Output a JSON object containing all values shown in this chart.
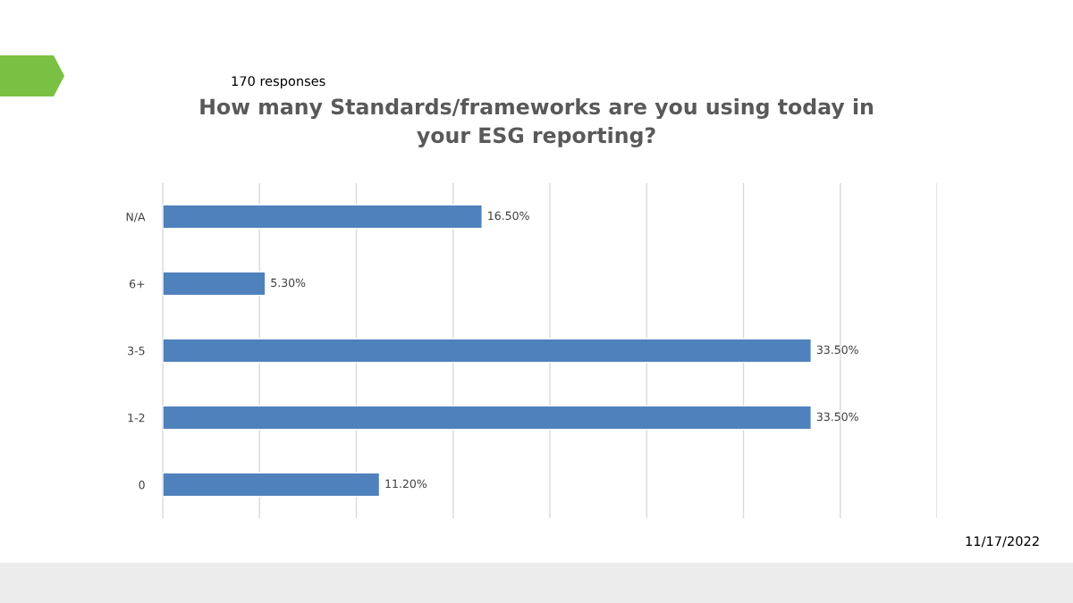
{
  "chart_data": {
    "type": "bar",
    "orientation": "horizontal",
    "title": "How many Standards/frameworks are you using today in\nyour ESG reporting?",
    "categories": [
      "N/A",
      "6+",
      "3-5",
      "1-2",
      "0"
    ],
    "values": [
      16.5,
      5.3,
      33.5,
      33.5,
      11.2
    ],
    "value_labels": [
      "16.50%",
      "5.30%",
      "33.50%",
      "33.50%",
      "11.20%"
    ],
    "color": "#4f81bd",
    "xlim": [
      0,
      40
    ],
    "xticks": [
      {
        "value": 0,
        "label": null
      },
      {
        "value": 5,
        "label": null
      },
      {
        "value": 10,
        "label": null
      },
      {
        "value": 15,
        "label": null
      },
      {
        "value": 20,
        "label": null
      },
      {
        "value": 25,
        "label": null
      },
      {
        "value": 30,
        "label": null
      },
      {
        "value": 35,
        "label": null
      },
      {
        "value": 40,
        "label": null
      }
    ],
    "tick_labels": "y",
    "grid": "x",
    "legend": false,
    "annotations": [
      "170 responses",
      "11/17/2022"
    ]
  }
}
